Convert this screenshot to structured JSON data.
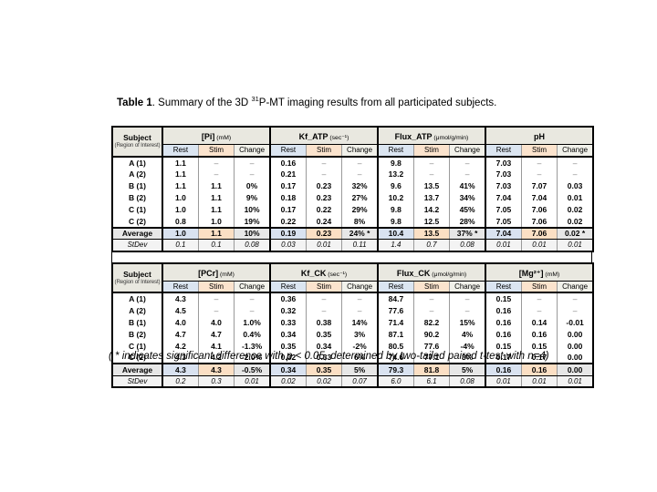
{
  "caption": {
    "label": "Table 1",
    "before_sup": ". Summary of the 3D ",
    "superscript": "31",
    "after_sup": "P-MT imaging results from all participated subjects."
  },
  "footnote": "( * indicates significant difference with p < 0.05, determined by two-tailed paired t-test with n=4)",
  "colors": {
    "rest_header": "#dbe5f1",
    "stim_header": "#fbe3cd",
    "change_header": "#f1f1ea",
    "group_header": "#e9e8e0",
    "average_gray": "#e7e7e7",
    "stdev_gray": "#f3f3f3",
    "border": "#000000"
  },
  "subheaders": [
    "Rest",
    "Stim",
    "Change"
  ],
  "tables": [
    {
      "corner": {
        "title": "Subject",
        "subtitle": "(Region of Interest)"
      },
      "groups": [
        {
          "name": "[Pi]",
          "unit": "(mM)"
        },
        {
          "name": "Kf_ATP",
          "unit": "(sec⁻¹)"
        },
        {
          "name": "Flux_ATP",
          "unit": "(μmol/g/min)"
        },
        {
          "name": "pH",
          "unit": ""
        }
      ],
      "rows": [
        {
          "type": "data",
          "label": "A (1)",
          "values": [
            "1.1",
            "–",
            "–",
            "0.16",
            "–",
            "–",
            "9.8",
            "–",
            "–",
            "7.03",
            "–",
            "–"
          ]
        },
        {
          "type": "data",
          "label": "A (2)",
          "values": [
            "1.1",
            "–",
            "–",
            "0.21",
            "–",
            "–",
            "13.2",
            "–",
            "–",
            "7.03",
            "–",
            "–"
          ]
        },
        {
          "type": "data",
          "label": "B (1)",
          "values": [
            "1.1",
            "1.1",
            "0%",
            "0.17",
            "0.23",
            "32%",
            "9.6",
            "13.5",
            "41%",
            "7.03",
            "7.07",
            "0.03"
          ]
        },
        {
          "type": "data",
          "label": "B (2)",
          "values": [
            "1.0",
            "1.1",
            "9%",
            "0.18",
            "0.23",
            "27%",
            "10.2",
            "13.7",
            "34%",
            "7.04",
            "7.04",
            "0.01"
          ]
        },
        {
          "type": "data",
          "label": "C (1)",
          "values": [
            "1.0",
            "1.1",
            "10%",
            "0.17",
            "0.22",
            "29%",
            "9.8",
            "14.2",
            "45%",
            "7.05",
            "7.06",
            "0.02"
          ]
        },
        {
          "type": "data",
          "label": "C (2)",
          "values": [
            "0.8",
            "1.0",
            "19%",
            "0.22",
            "0.24",
            "8%",
            "9.8",
            "12.5",
            "28%",
            "7.05",
            "7.06",
            "0.02"
          ]
        },
        {
          "type": "average",
          "label": "Average",
          "values": [
            "1.0",
            "1.1",
            "10%",
            "0.19",
            "0.23",
            "24% *",
            "10.4",
            "13.5",
            "37% *",
            "7.04",
            "7.06",
            "0.02 *"
          ]
        },
        {
          "type": "stdev",
          "label": "StDev",
          "values": [
            "0.1",
            "0.1",
            "0.08",
            "0.03",
            "0.01",
            "0.11",
            "1.4",
            "0.7",
            "0.08",
            "0.01",
            "0.01",
            "0.01"
          ]
        }
      ]
    },
    {
      "corner": {
        "title": "Subject",
        "subtitle": "(Region of Interest)"
      },
      "groups": [
        {
          "name": "[PCr]",
          "unit": "(mM)"
        },
        {
          "name": "Kf_CK",
          "unit": "(sec⁻¹)"
        },
        {
          "name": "Flux_CK",
          "unit": "(μmol/g/min)"
        },
        {
          "name": "[Mg²⁺]",
          "unit": "(mM)"
        }
      ],
      "rows": [
        {
          "type": "data",
          "label": "A (1)",
          "values": [
            "4.3",
            "–",
            "–",
            "0.36",
            "–",
            "–",
            "84.7",
            "–",
            "–",
            "0.15",
            "–",
            "–"
          ]
        },
        {
          "type": "data",
          "label": "A (2)",
          "values": [
            "4.5",
            "–",
            "–",
            "0.32",
            "–",
            "–",
            "77.6",
            "–",
            "–",
            "0.16",
            "–",
            "–"
          ]
        },
        {
          "type": "data",
          "label": "B (1)",
          "values": [
            "4.0",
            "4.0",
            "1.0%",
            "0.33",
            "0.38",
            "14%",
            "71.4",
            "82.2",
            "15%",
            "0.16",
            "0.14",
            "-0.01"
          ]
        },
        {
          "type": "data",
          "label": "B (2)",
          "values": [
            "4.7",
            "4.7",
            "0.4%",
            "0.34",
            "0.35",
            "3%",
            "87.1",
            "90.2",
            "4%",
            "0.16",
            "0.16",
            "0.00"
          ]
        },
        {
          "type": "data",
          "label": "C (1)",
          "values": [
            "4.2",
            "4.1",
            "-1.3%",
            "0.35",
            "0.34",
            "-2%",
            "80.5",
            "77.6",
            "-4%",
            "0.15",
            "0.15",
            "0.00"
          ]
        },
        {
          "type": "data",
          "label": "C (2)",
          "values": [
            "4.3",
            "4.2",
            "-2.0%",
            "0.32",
            "0.33",
            "6%",
            "74.6",
            "77.1",
            "3%",
            "0.17",
            "0.17",
            "0.00"
          ]
        },
        {
          "type": "average",
          "label": "Average",
          "values": [
            "4.3",
            "4.3",
            "-0.5%",
            "0.34",
            "0.35",
            "5%",
            "79.3",
            "81.8",
            "5%",
            "0.16",
            "0.16",
            "0.00"
          ]
        },
        {
          "type": "stdev",
          "label": "StDev",
          "values": [
            "0.2",
            "0.3",
            "0.01",
            "0.02",
            "0.02",
            "0.07",
            "6.0",
            "6.1",
            "0.08",
            "0.01",
            "0.01",
            "0.01"
          ]
        }
      ]
    }
  ]
}
